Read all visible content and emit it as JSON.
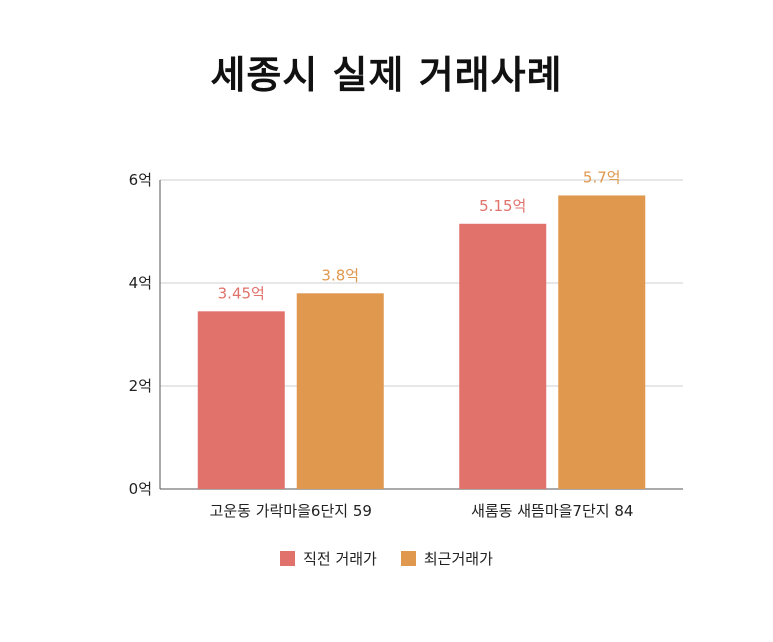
{
  "chart_data": {
    "type": "bar",
    "title": "세종시 실제 거래사례",
    "categories": [
      "고운동 가락마을6단지 59",
      "새롬동 새뜸마을7단지 84"
    ],
    "series": [
      {
        "name": "직전 거래가",
        "values": [
          3.45,
          5.15
        ],
        "labels": [
          "3.45억",
          "5.15억"
        ],
        "color": "#e1716b"
      },
      {
        "name": "최근거래가",
        "values": [
          3.8,
          5.7
        ],
        "labels": [
          "3.8억",
          "5.7억"
        ],
        "color": "#e0984f"
      }
    ],
    "yticks": [
      0,
      2,
      4,
      6
    ],
    "ytick_labels": [
      "0억",
      "2억",
      "4억",
      "6억"
    ],
    "ylim": [
      0,
      6
    ],
    "grid": true,
    "legend_position": "bottom"
  }
}
